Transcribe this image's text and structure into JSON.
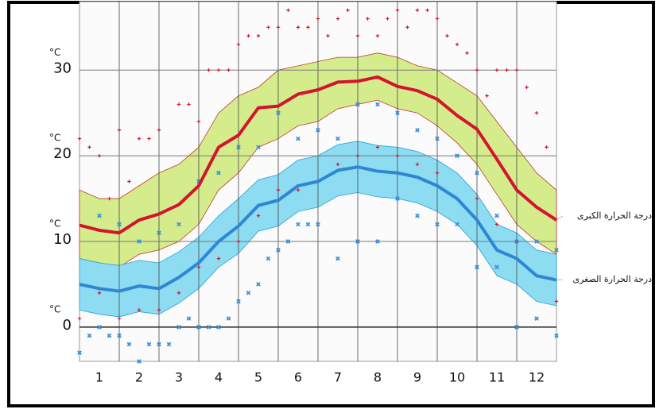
{
  "chart_data": {
    "type": "line",
    "x": [
      0,
      0.5,
      1,
      1.5,
      2,
      2.5,
      3,
      3.5,
      4,
      4.5,
      5,
      5.5,
      6,
      6.5,
      7,
      7.5,
      8,
      8.5,
      9,
      9.5,
      10,
      10.5,
      11,
      11.5,
      12
    ],
    "xlim": [
      0,
      12
    ],
    "xticks": [
      {
        "value": 0.5,
        "label": "1"
      },
      {
        "value": 1.5,
        "label": "2"
      },
      {
        "value": 2.5,
        "label": "3"
      },
      {
        "value": 3.5,
        "label": "4"
      },
      {
        "value": 4.5,
        "label": "5"
      },
      {
        "value": 5.5,
        "label": "6"
      },
      {
        "value": 6.5,
        "label": "7"
      },
      {
        "value": 7.5,
        "label": "8"
      },
      {
        "value": 8.5,
        "label": "9"
      },
      {
        "value": 9.5,
        "label": "10"
      },
      {
        "value": 10.5,
        "label": "11"
      },
      {
        "value": 11.5,
        "label": "12"
      }
    ],
    "xgrid": [
      1,
      2,
      3,
      4,
      5,
      6,
      7,
      8,
      9,
      10,
      11
    ],
    "ylim": [
      -4,
      38
    ],
    "yticks": [
      0,
      10,
      20,
      30
    ],
    "y_unit": "°C",
    "grid": true,
    "series": [
      {
        "name": "درجة الحرارة الكبرى",
        "color": "#d3142e",
        "values": [
          11.9,
          11.3,
          11.0,
          12.5,
          13.2,
          14.3,
          16.5,
          21.0,
          22.4,
          25.6,
          25.8,
          27.2,
          27.7,
          28.6,
          28.7,
          29.2,
          28.1,
          27.6,
          26.6,
          24.7,
          23.1,
          19.6,
          16.0,
          14.0,
          12.5
        ]
      },
      {
        "name": "درجة الحرارة الصغرى",
        "color": "#2f86d4",
        "values": [
          5.0,
          4.5,
          4.2,
          4.8,
          4.5,
          5.8,
          7.5,
          10.0,
          11.8,
          14.2,
          14.8,
          16.5,
          17.0,
          18.3,
          18.7,
          18.2,
          18.0,
          17.5,
          16.5,
          15.0,
          12.5,
          9.0,
          8.0,
          6.0,
          5.5
        ]
      }
    ],
    "bands": [
      {
        "color": "#d5ec8d",
        "edge": "#c0392b",
        "upper": [
          16,
          15,
          15,
          16.5,
          18,
          19,
          21,
          25,
          27,
          28,
          30,
          30.5,
          31,
          31.5,
          31.5,
          32,
          31.5,
          30.5,
          30,
          28.5,
          27,
          24,
          21,
          18,
          16
        ],
        "lower": [
          8,
          7.5,
          7,
          8.5,
          9,
          10,
          12,
          16,
          18,
          21,
          22,
          23.5,
          24,
          25.5,
          26,
          26.5,
          25.5,
          25,
          23.5,
          21.5,
          19,
          15.5,
          12,
          10,
          8.5
        ]
      },
      {
        "color": "#8ddcf2",
        "edge": "#2a9fd6",
        "upper": [
          8,
          7.5,
          7.2,
          7.8,
          7.5,
          8.8,
          10.5,
          13,
          15,
          17.2,
          17.8,
          19.5,
          20,
          21.3,
          21.7,
          21.2,
          21,
          20.5,
          19.5,
          18,
          15.5,
          12,
          11,
          9,
          8.5
        ],
        "lower": [
          2,
          1.5,
          1.2,
          1.8,
          1.5,
          2.8,
          4.5,
          7,
          8.6,
          11.2,
          11.8,
          13.5,
          14,
          15.3,
          15.7,
          15.2,
          15,
          14.5,
          13.5,
          12,
          9.5,
          6,
          5,
          3,
          2.5
        ]
      }
    ],
    "scatter": [
      {
        "color": "#d3142e",
        "marker": "plus",
        "x": [
          0,
          0.25,
          0.5,
          0.75,
          1,
          1.25,
          1.5,
          1.75,
          2,
          2.5,
          2.75,
          3,
          3.25,
          3.5,
          3.75,
          4,
          4.25,
          4.5,
          4.75,
          5,
          5.25,
          5.5,
          5.75,
          6,
          6.25,
          6.5,
          6.75,
          7,
          7.25,
          7.5,
          7.75,
          8,
          8.25,
          8.5,
          8.75,
          9,
          9.25,
          9.5,
          9.75,
          10,
          10.25,
          10.5,
          10.75,
          11,
          11.25,
          11.5,
          11.75,
          0,
          0.5,
          1,
          1.5,
          2,
          2.5,
          3,
          3.5,
          4,
          4.5,
          5,
          5.5,
          6,
          6.5,
          7,
          7.5,
          8,
          8.5,
          9,
          9.5,
          10,
          10.5,
          11,
          11.5,
          12
        ],
        "values": [
          22,
          21,
          20,
          15,
          23,
          17,
          22,
          22,
          23,
          26,
          26,
          24,
          30,
          30,
          30,
          33,
          34,
          34,
          35,
          35,
          37,
          35,
          35,
          36,
          34,
          36,
          37,
          34,
          36,
          34,
          36,
          37,
          35,
          37,
          37,
          36,
          34,
          33,
          32,
          30,
          27,
          30,
          30,
          30,
          28,
          25,
          21,
          1,
          4,
          1,
          2,
          2,
          4,
          7,
          8,
          10,
          13,
          16,
          16,
          17,
          19,
          20,
          21,
          20,
          19,
          18,
          15,
          15,
          12,
          10,
          6,
          3
        ]
      },
      {
        "color": "#3a8fd8",
        "marker": "cross",
        "x": [
          0,
          0.25,
          0.5,
          0.75,
          1,
          1.25,
          1.5,
          1.75,
          2,
          2.25,
          2.5,
          2.75,
          3,
          3.25,
          3.5,
          3.75,
          4,
          4.25,
          4.5,
          4.75,
          5,
          5.25,
          5.5,
          5.75,
          6,
          6.5,
          7,
          7.5,
          8,
          8.5,
          9,
          9.5,
          10,
          10.5,
          11,
          11.5,
          12,
          0.5,
          1,
          1.5,
          2,
          2.5,
          3,
          3.5,
          4,
          4.5,
          5,
          5.5,
          6,
          6.5,
          7,
          7.5,
          8,
          8.5,
          9,
          9.5,
          10,
          10.5,
          11,
          11.5,
          12
        ],
        "values": [
          -3,
          -1,
          0,
          -1,
          -1,
          -2,
          -4,
          -2,
          -2,
          -2,
          0,
          1,
          0,
          0,
          0,
          1,
          3,
          4,
          5,
          8,
          9,
          10,
          12,
          12,
          12,
          8,
          10,
          10,
          15,
          13,
          12,
          12,
          7,
          7,
          0,
          1,
          -1,
          13,
          12,
          10,
          11,
          12,
          17,
          18,
          21,
          21,
          25,
          22,
          23,
          22,
          26,
          26,
          25,
          23,
          22,
          20,
          18,
          13,
          10,
          10,
          9
        ]
      }
    ]
  }
}
